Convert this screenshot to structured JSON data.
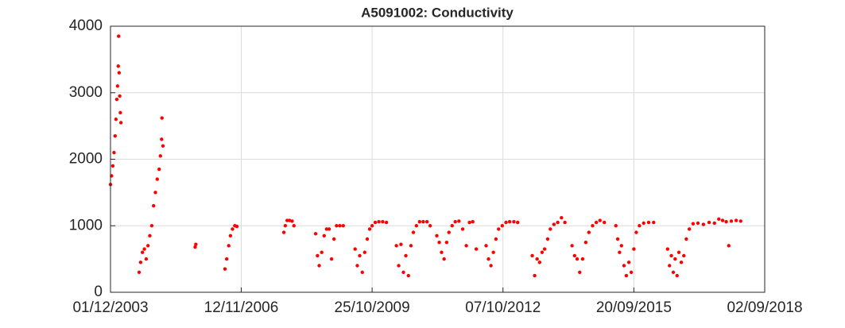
{
  "chart_data": {
    "type": "scatter",
    "title": "A5091002: Conductivity",
    "color": "#ff0000",
    "grid": true,
    "xlim": [
      "2003-12-01",
      "2018-09-02"
    ],
    "xticks": [
      {
        "value": "2003-12-01",
        "label": "01/12/2003"
      },
      {
        "value": "2006-11-12",
        "label": "12/11/2006"
      },
      {
        "value": "2009-10-25",
        "label": "25/10/2009"
      },
      {
        "value": "2012-10-07",
        "label": "07/10/2012"
      },
      {
        "value": "2015-09-20",
        "label": "20/09/2015"
      },
      {
        "value": "2018-09-02",
        "label": "02/09/2018"
      }
    ],
    "ylim": [
      0,
      4000
    ],
    "yticks": [
      0,
      1000,
      2000,
      3000,
      4000
    ],
    "x": [
      "2003-12-01",
      "2003-12-10",
      "2003-12-20",
      "2003-12-30",
      "2004-01-08",
      "2004-01-15",
      "2004-01-22",
      "2004-01-28",
      "2004-02-03",
      "2004-02-06",
      "2004-02-10",
      "2004-02-15",
      "2004-02-20",
      "2004-02-25",
      "2004-07-24",
      "2004-08-05",
      "2004-08-20",
      "2004-09-05",
      "2004-09-20",
      "2004-10-05",
      "2004-10-20",
      "2004-11-05",
      "2004-11-20",
      "2004-12-05",
      "2004-12-20",
      "2005-01-05",
      "2005-01-15",
      "2005-01-25",
      "2005-01-28",
      "2005-02-05",
      "2005-10-28",
      "2005-11-03",
      "2006-07-01",
      "2006-07-15",
      "2006-08-01",
      "2006-08-15",
      "2006-09-01",
      "2006-09-20",
      "2006-10-07",
      "2007-10-29",
      "2007-11-10",
      "2007-11-25",
      "2007-12-15",
      "2008-01-05",
      "2008-01-20",
      "2008-07-17",
      "2008-08-01",
      "2008-08-15",
      "2008-09-05",
      "2008-09-25",
      "2008-10-15",
      "2008-11-05",
      "2008-11-25",
      "2008-12-15",
      "2009-01-05",
      "2009-02-01",
      "2009-03-01",
      "2009-06-07",
      "2009-06-25",
      "2009-07-15",
      "2009-08-05",
      "2009-08-25",
      "2009-09-15",
      "2009-10-05",
      "2009-10-25",
      "2009-11-20",
      "2009-12-20",
      "2010-01-20",
      "2010-02-20",
      "2010-05-13",
      "2010-06-01",
      "2010-06-20",
      "2010-07-10",
      "2010-07-30",
      "2010-08-20",
      "2010-09-10",
      "2010-09-30",
      "2010-10-25",
      "2010-11-20",
      "2010-12-20",
      "2011-01-20",
      "2011-02-15",
      "2011-04-11",
      "2011-05-01",
      "2011-05-20",
      "2011-06-10",
      "2011-07-01",
      "2011-07-20",
      "2011-08-15",
      "2011-09-10",
      "2011-10-10",
      "2011-11-10",
      "2011-12-10",
      "2012-01-05",
      "2012-02-01",
      "2012-03-01",
      "2012-05-21",
      "2012-06-10",
      "2012-06-30",
      "2012-07-20",
      "2012-08-10",
      "2012-09-01",
      "2012-10-01",
      "2012-11-01",
      "2012-12-01",
      "2013-01-05",
      "2013-02-05",
      "2013-06-05",
      "2013-06-25",
      "2013-07-15",
      "2013-08-05",
      "2013-08-25",
      "2013-09-15",
      "2013-10-10",
      "2013-11-01",
      "2013-12-01",
      "2014-01-01",
      "2014-02-01",
      "2014-03-01",
      "2014-04-29",
      "2014-05-20",
      "2014-06-10",
      "2014-07-01",
      "2014-07-25",
      "2014-08-20",
      "2014-09-15",
      "2014-10-15",
      "2014-11-15",
      "2014-12-15",
      "2015-01-20",
      "2015-04-25",
      "2015-05-10",
      "2015-05-25",
      "2015-06-10",
      "2015-07-01",
      "2015-07-20",
      "2015-08-10",
      "2015-08-30",
      "2015-09-20",
      "2015-10-10",
      "2015-11-05",
      "2015-12-10",
      "2016-01-20",
      "2016-03-01",
      "2016-06-24",
      "2016-07-10",
      "2016-07-25",
      "2016-08-10",
      "2016-08-25",
      "2016-09-10",
      "2016-09-25",
      "2016-10-15",
      "2016-11-05",
      "2016-11-25",
      "2016-12-20",
      "2017-01-20",
      "2017-03-01",
      "2017-04-15",
      "2017-06-01",
      "2017-07-15",
      "2017-08-20",
      "2017-09-20",
      "2017-10-20",
      "2017-11-10",
      "2017-12-01",
      "2018-01-10",
      "2018-02-16"
    ],
    "values": [
      1620,
      1750,
      1900,
      2100,
      2350,
      2600,
      2900,
      3100,
      3400,
      3850,
      3300,
      2950,
      2700,
      2550,
      300,
      450,
      600,
      650,
      500,
      700,
      850,
      1000,
      1300,
      1500,
      1700,
      1850,
      2050,
      2300,
      2620,
      2200,
      680,
      720,
      350,
      500,
      700,
      850,
      950,
      1000,
      990,
      900,
      1000,
      1080,
      1080,
      1070,
      1000,
      880,
      550,
      400,
      600,
      850,
      950,
      950,
      500,
      800,
      1000,
      1000,
      1000,
      650,
      400,
      550,
      300,
      600,
      800,
      950,
      1000,
      1050,
      1060,
      1060,
      1050,
      700,
      400,
      720,
      300,
      550,
      250,
      700,
      900,
      1000,
      1060,
      1060,
      1060,
      1000,
      850,
      750,
      600,
      500,
      750,
      900,
      1000,
      1060,
      1070,
      950,
      700,
      1050,
      1060,
      650,
      700,
      500,
      400,
      600,
      800,
      950,
      1000,
      1050,
      1060,
      1060,
      1050,
      550,
      250,
      500,
      450,
      600,
      650,
      800,
      950,
      1020,
      1050,
      1120,
      1050,
      700,
      550,
      500,
      300,
      500,
      750,
      900,
      1000,
      1050,
      1080,
      1050,
      1000,
      800,
      600,
      700,
      400,
      250,
      450,
      300,
      650,
      900,
      1000,
      1040,
      1050,
      1050,
      650,
      400,
      550,
      300,
      500,
      250,
      600,
      450,
      550,
      800,
      950,
      1030,
      1040,
      1020,
      1050,
      1040,
      1100,
      1080,
      1060,
      700,
      1070,
      1080,
      1070
    ]
  }
}
